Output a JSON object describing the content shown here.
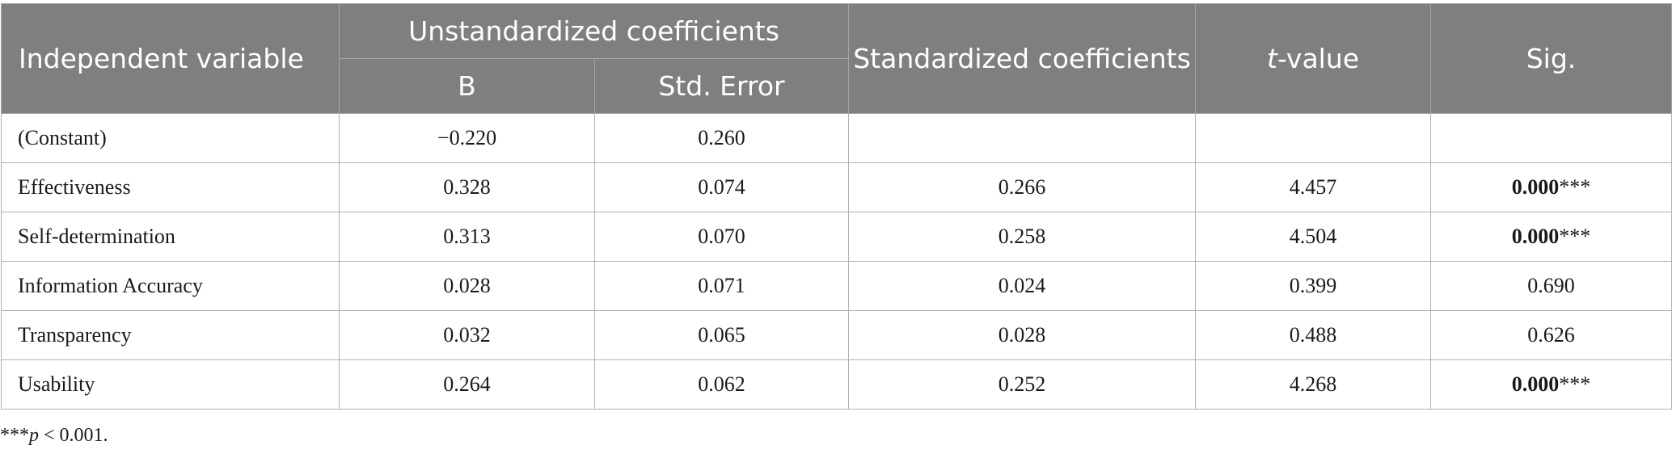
{
  "header": {
    "independent_variable": "Independent variable",
    "unstandardized": "Unstandardized coefficients",
    "b": "B",
    "std_error": "Std. Error",
    "standardized": "Standardized coefficients",
    "t_italic": "t",
    "t_rest": "-value",
    "sig": "Sig."
  },
  "rows": [
    {
      "variable": "(Constant)",
      "b": "−0.220",
      "se": "0.260",
      "beta": "",
      "t": "",
      "sig_bold": "",
      "sig_rest": ""
    },
    {
      "variable": "Effectiveness",
      "b": "0.328",
      "se": "0.074",
      "beta": "0.266",
      "t": "4.457",
      "sig_bold": "0.000",
      "sig_rest": "***"
    },
    {
      "variable": "Self-determination",
      "b": "0.313",
      "se": "0.070",
      "beta": "0.258",
      "t": "4.504",
      "sig_bold": "0.000",
      "sig_rest": "***"
    },
    {
      "variable": "Information Accuracy",
      "b": "0.028",
      "se": "0.071",
      "beta": "0.024",
      "t": "0.399",
      "sig_bold": "",
      "sig_rest": "0.690"
    },
    {
      "variable": "Transparency",
      "b": "0.032",
      "se": "0.065",
      "beta": "0.028",
      "t": "0.488",
      "sig_bold": "",
      "sig_rest": "0.626"
    },
    {
      "variable": "Usability",
      "b": "0.264",
      "se": "0.062",
      "beta": "0.252",
      "t": "4.268",
      "sig_bold": "0.000",
      "sig_rest": "***"
    }
  ],
  "footnote": {
    "stars": "***",
    "p": "p",
    "rest": " < 0.001."
  }
}
